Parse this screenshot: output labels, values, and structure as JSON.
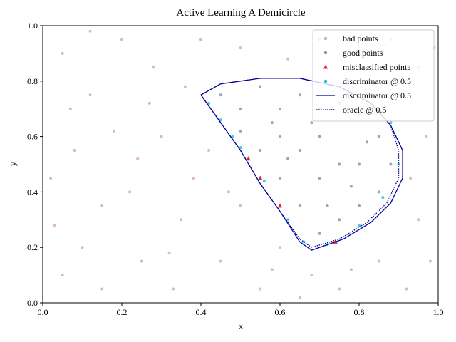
{
  "chart_data": {
    "type": "scatter",
    "title": "Active Learning A Demicircle",
    "x_label": "x",
    "y_label": "y",
    "xlim": [
      0,
      1
    ],
    "ylim": [
      0,
      1
    ],
    "xticks": [
      {
        "value": 0,
        "label": "0.0"
      },
      0.2,
      0.4,
      0.6,
      0.8,
      {
        "value": 1,
        "label": "1.0"
      }
    ],
    "yticks": [
      {
        "value": 0,
        "label": "0.0"
      },
      0.2,
      0.4,
      0.6,
      0.8,
      {
        "value": 1,
        "label": "1.0"
      }
    ],
    "legend": "upper right",
    "series": [
      {
        "name": "bad points",
        "color": "#d9a3a8",
        "kind": "points",
        "marker": "circle",
        "x": [
          0.05,
          0.12,
          0.2,
          0.08,
          0.15,
          0.25,
          0.05,
          0.3,
          0.35,
          0.28,
          0.4,
          0.45,
          0.55,
          0.6,
          0.5,
          0.38,
          0.7,
          0.8,
          0.95,
          0.97,
          0.95,
          0.85,
          0.75,
          0.92,
          0.18,
          0.22,
          0.1,
          0.33,
          0.62,
          0.9,
          0.02,
          0.27,
          0.42,
          0.47,
          0.58,
          0.68,
          0.98,
          0.88,
          0.5,
          0.15,
          0.07,
          0.32,
          0.24,
          0.12,
          0.36,
          0.03,
          0.65,
          0.78,
          0.93,
          0.99
        ],
        "y": [
          0.9,
          0.75,
          0.95,
          0.55,
          0.35,
          0.15,
          0.1,
          0.6,
          0.3,
          0.85,
          0.95,
          0.15,
          0.05,
          0.2,
          0.35,
          0.45,
          0.95,
          0.9,
          0.85,
          0.6,
          0.3,
          0.15,
          0.05,
          0.05,
          0.62,
          0.4,
          0.2,
          0.05,
          0.88,
          0.75,
          0.45,
          0.72,
          0.55,
          0.4,
          0.12,
          0.1,
          0.15,
          0.95,
          0.92,
          0.05,
          0.7,
          0.18,
          0.52,
          0.98,
          0.78,
          0.28,
          0.02,
          0.12,
          0.45,
          0.92
        ]
      },
      {
        "name": "good points",
        "color": "#7f8fb0",
        "kind": "points",
        "marker": "circle",
        "x": [
          0.45,
          0.5,
          0.55,
          0.6,
          0.65,
          0.7,
          0.75,
          0.8,
          0.85,
          0.88,
          0.85,
          0.8,
          0.75,
          0.7,
          0.65,
          0.6,
          0.55,
          0.5,
          0.6,
          0.7,
          0.75,
          0.7,
          0.8,
          0.65,
          0.72,
          0.78,
          0.58,
          0.68,
          0.82,
          0.62
        ],
        "y": [
          0.75,
          0.7,
          0.78,
          0.7,
          0.75,
          0.7,
          0.72,
          0.68,
          0.6,
          0.5,
          0.4,
          0.35,
          0.3,
          0.25,
          0.35,
          0.45,
          0.55,
          0.62,
          0.6,
          0.6,
          0.5,
          0.45,
          0.5,
          0.55,
          0.35,
          0.42,
          0.65,
          0.65,
          0.58,
          0.52
        ]
      },
      {
        "name": "misclassified points",
        "color": "#d62728",
        "kind": "points",
        "marker": "triangle",
        "x": [
          0.55,
          0.6,
          0.74,
          0.52
        ],
        "y": [
          0.45,
          0.35,
          0.22,
          0.52
        ]
      },
      {
        "name": "discriminator @ 0.5",
        "color": "#17becf",
        "kind": "points",
        "marker": "circle",
        "x": [
          0.42,
          0.45,
          0.48,
          0.5,
          0.56,
          0.62,
          0.66,
          0.72,
          0.8,
          0.86,
          0.9,
          0.88
        ],
        "y": [
          0.72,
          0.66,
          0.6,
          0.56,
          0.44,
          0.3,
          0.22,
          0.21,
          0.28,
          0.38,
          0.5,
          0.65
        ]
      },
      {
        "name": "discriminator @ 0.5",
        "color": "#0000aa",
        "kind": "line",
        "dash": "solid",
        "x": [
          0.4,
          0.45,
          0.55,
          0.65,
          0.75,
          0.83,
          0.88,
          0.91,
          0.91,
          0.88,
          0.83,
          0.76,
          0.68,
          0.65,
          0.6,
          0.55,
          0.5,
          0.45,
          0.4
        ],
        "y": [
          0.75,
          0.79,
          0.81,
          0.81,
          0.78,
          0.72,
          0.64,
          0.55,
          0.45,
          0.36,
          0.29,
          0.23,
          0.19,
          0.22,
          0.33,
          0.43,
          0.55,
          0.65,
          0.75
        ]
      },
      {
        "name": "oracle @ 0.5",
        "color": "#000080",
        "kind": "line",
        "dash": "dotted",
        "x": [
          0.4,
          0.45,
          0.55,
          0.65,
          0.75,
          0.83,
          0.88,
          0.9,
          0.9,
          0.87,
          0.82,
          0.75,
          0.68,
          0.65,
          0.6,
          0.55,
          0.5,
          0.45,
          0.4
        ],
        "y": [
          0.75,
          0.79,
          0.81,
          0.81,
          0.78,
          0.72,
          0.64,
          0.55,
          0.45,
          0.36,
          0.29,
          0.23,
          0.2,
          0.23,
          0.33,
          0.43,
          0.55,
          0.65,
          0.75
        ]
      }
    ]
  }
}
